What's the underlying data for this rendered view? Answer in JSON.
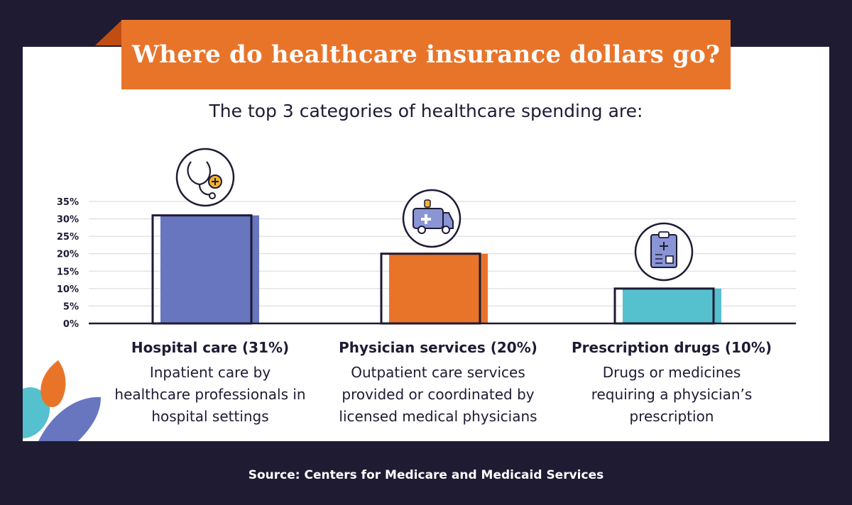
{
  "banner": {
    "title": "Where do healthcare insurance dollars go?"
  },
  "subtitle": "The top 3 categories of healthcare spending are:",
  "source": "Source: Centers for Medicare and Medicaid Services",
  "colors": {
    "background": "#1e1b33",
    "banner": "#e8742a",
    "hospital": "#6776be",
    "physician": "#e8742a",
    "drugs": "#55c1cf",
    "outline": "#1e1b33"
  },
  "chart_data": {
    "type": "bar",
    "title": "",
    "xlabel": "",
    "ylabel": "",
    "ylim": [
      0,
      35
    ],
    "y_ticks": [
      "0%",
      "5%",
      "10%",
      "15%",
      "20%",
      "25%",
      "30%",
      "35%"
    ],
    "grid": true,
    "categories": [
      "Hospital care",
      "Physician services",
      "Prescription drugs"
    ],
    "values": [
      31,
      20,
      10
    ],
    "icons": [
      "stethoscope-icon",
      "ambulance-icon",
      "prescription-clipboard-icon"
    ]
  },
  "categories": [
    {
      "name": "Hospital care (31%)",
      "description": "Inpatient care by healthcare professionals in hospital settings"
    },
    {
      "name": "Physician services  (20%)",
      "description": "Outpatient care services provided or coordinated by licensed medical physicians"
    },
    {
      "name": "Prescription drugs  (10%)",
      "description": "Drugs or medicines requiring a physician’s prescription"
    }
  ]
}
